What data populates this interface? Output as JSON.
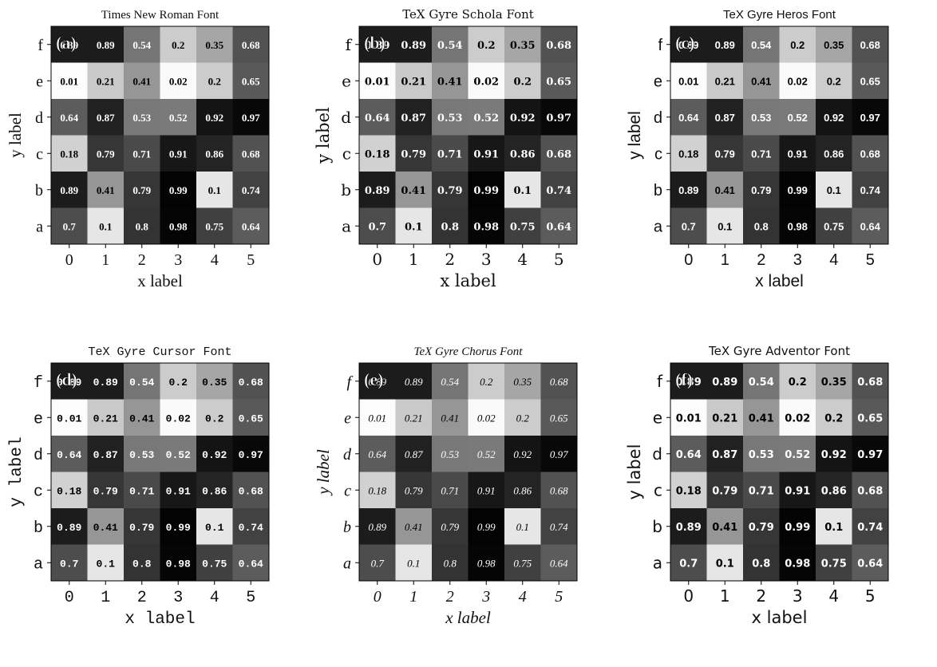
{
  "chart_data": [
    {
      "type": "heatmap",
      "panel_label": "(a)",
      "title": "Times New Roman Font",
      "xlabel": "x label",
      "ylabel": "y label",
      "x": [
        "0",
        "1",
        "2",
        "3",
        "4",
        "5"
      ],
      "y": [
        "a",
        "b",
        "c",
        "d",
        "e",
        "f"
      ],
      "values": [
        [
          0.7,
          0.1,
          0.8,
          0.98,
          0.75,
          0.64
        ],
        [
          0.89,
          0.41,
          0.79,
          0.99,
          0.1,
          0.74
        ],
        [
          0.18,
          0.79,
          0.71,
          0.91,
          0.86,
          0.68
        ],
        [
          0.64,
          0.87,
          0.53,
          0.52,
          0.92,
          0.97
        ],
        [
          0.01,
          0.21,
          0.41,
          0.02,
          0.2,
          0.65
        ],
        [
          0.89,
          0.89,
          0.54,
          0.2,
          0.35,
          0.68
        ]
      ],
      "colormap": "gray_r"
    },
    {
      "type": "heatmap",
      "panel_label": "(b)",
      "title": "TeX Gyre Schola Font",
      "xlabel": "x label",
      "ylabel": "y label",
      "x": [
        "0",
        "1",
        "2",
        "3",
        "4",
        "5"
      ],
      "y": [
        "a",
        "b",
        "c",
        "d",
        "e",
        "f"
      ],
      "values": [
        [
          0.7,
          0.1,
          0.8,
          0.98,
          0.75,
          0.64
        ],
        [
          0.89,
          0.41,
          0.79,
          0.99,
          0.1,
          0.74
        ],
        [
          0.18,
          0.79,
          0.71,
          0.91,
          0.86,
          0.68
        ],
        [
          0.64,
          0.87,
          0.53,
          0.52,
          0.92,
          0.97
        ],
        [
          0.01,
          0.21,
          0.41,
          0.02,
          0.2,
          0.65
        ],
        [
          0.89,
          0.89,
          0.54,
          0.2,
          0.35,
          0.68
        ]
      ],
      "colormap": "gray_r"
    },
    {
      "type": "heatmap",
      "panel_label": "(c)",
      "title": "TeX Gyre Heros Font",
      "xlabel": "x label",
      "ylabel": "y label",
      "x": [
        "0",
        "1",
        "2",
        "3",
        "4",
        "5"
      ],
      "y": [
        "a",
        "b",
        "c",
        "d",
        "e",
        "f"
      ],
      "values": [
        [
          0.7,
          0.1,
          0.8,
          0.98,
          0.75,
          0.64
        ],
        [
          0.89,
          0.41,
          0.79,
          0.99,
          0.1,
          0.74
        ],
        [
          0.18,
          0.79,
          0.71,
          0.91,
          0.86,
          0.68
        ],
        [
          0.64,
          0.87,
          0.53,
          0.52,
          0.92,
          0.97
        ],
        [
          0.01,
          0.21,
          0.41,
          0.02,
          0.2,
          0.65
        ],
        [
          0.89,
          0.89,
          0.54,
          0.2,
          0.35,
          0.68
        ]
      ],
      "colormap": "gray_r"
    },
    {
      "type": "heatmap",
      "panel_label": "(d)",
      "title": "TeX Gyre Cursor Font",
      "xlabel": "x label",
      "ylabel": "y label",
      "x": [
        "0",
        "1",
        "2",
        "3",
        "4",
        "5"
      ],
      "y": [
        "a",
        "b",
        "c",
        "d",
        "e",
        "f"
      ],
      "values": [
        [
          0.7,
          0.1,
          0.8,
          0.98,
          0.75,
          0.64
        ],
        [
          0.89,
          0.41,
          0.79,
          0.99,
          0.1,
          0.74
        ],
        [
          0.18,
          0.79,
          0.71,
          0.91,
          0.86,
          0.68
        ],
        [
          0.64,
          0.87,
          0.53,
          0.52,
          0.92,
          0.97
        ],
        [
          0.01,
          0.21,
          0.41,
          0.02,
          0.2,
          0.65
        ],
        [
          0.89,
          0.89,
          0.54,
          0.2,
          0.35,
          0.68
        ]
      ],
      "colormap": "gray_r"
    },
    {
      "type": "heatmap",
      "panel_label": "(e)",
      "title": "TeX Gyre Chorus Font",
      "xlabel": "x label",
      "ylabel": "y label",
      "x": [
        "0",
        "1",
        "2",
        "3",
        "4",
        "5"
      ],
      "y": [
        "a",
        "b",
        "c",
        "d",
        "e",
        "f"
      ],
      "values": [
        [
          0.7,
          0.1,
          0.8,
          0.98,
          0.75,
          0.64
        ],
        [
          0.89,
          0.41,
          0.79,
          0.99,
          0.1,
          0.74
        ],
        [
          0.18,
          0.79,
          0.71,
          0.91,
          0.86,
          0.68
        ],
        [
          0.64,
          0.87,
          0.53,
          0.52,
          0.92,
          0.97
        ],
        [
          0.01,
          0.21,
          0.41,
          0.02,
          0.2,
          0.65
        ],
        [
          0.89,
          0.89,
          0.54,
          0.2,
          0.35,
          0.68
        ]
      ],
      "colormap": "gray_r"
    },
    {
      "type": "heatmap",
      "panel_label": "(f)",
      "title": "TeX Gyre Adventor Font",
      "xlabel": "x label",
      "ylabel": "y label",
      "x": [
        "0",
        "1",
        "2",
        "3",
        "4",
        "5"
      ],
      "y": [
        "a",
        "b",
        "c",
        "d",
        "e",
        "f"
      ],
      "values": [
        [
          0.7,
          0.1,
          0.8,
          0.98,
          0.75,
          0.64
        ],
        [
          0.89,
          0.41,
          0.79,
          0.99,
          0.1,
          0.74
        ],
        [
          0.18,
          0.79,
          0.71,
          0.91,
          0.86,
          0.68
        ],
        [
          0.64,
          0.87,
          0.53,
          0.52,
          0.92,
          0.97
        ],
        [
          0.01,
          0.21,
          0.41,
          0.02,
          0.2,
          0.65
        ],
        [
          0.89,
          0.89,
          0.54,
          0.2,
          0.35,
          0.68
        ]
      ],
      "colormap": "gray_r"
    }
  ]
}
